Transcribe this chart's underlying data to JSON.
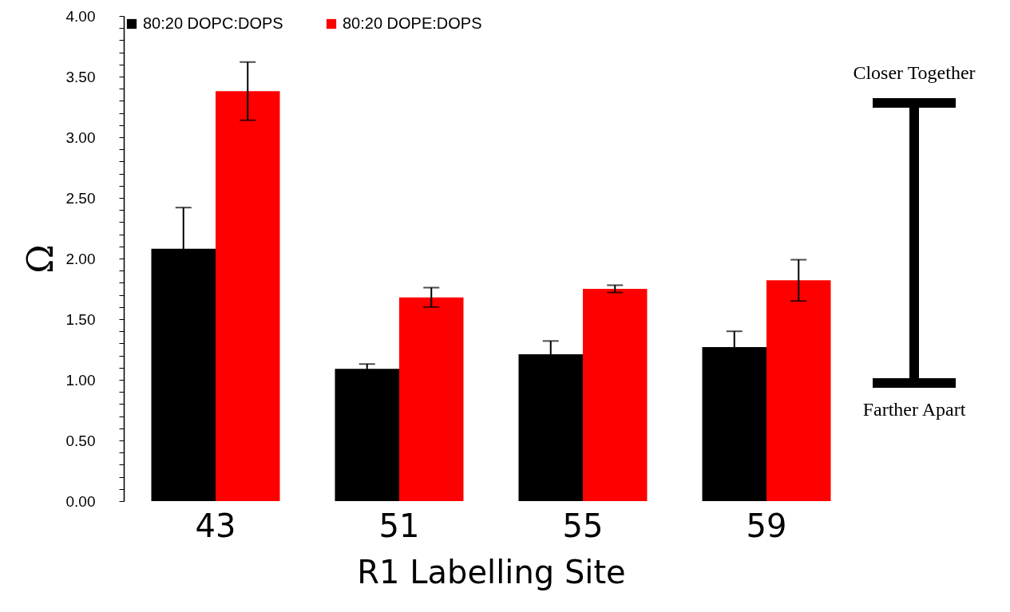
{
  "chart_data": {
    "type": "bar",
    "xlabel": "R1 Labelling Site",
    "ylabel": "Ω",
    "categories": [
      "43",
      "51",
      "55",
      "59"
    ],
    "series": [
      {
        "name": "80:20 DOPC:DOPS",
        "color": "#000000",
        "values": [
          2.08,
          1.09,
          1.21,
          1.27
        ],
        "errors": [
          0.34,
          0.04,
          0.11,
          0.13
        ]
      },
      {
        "name": "80:20 DOPE:DOPS",
        "color": "#ff0000",
        "values": [
          3.38,
          1.68,
          1.75,
          1.82
        ],
        "errors": [
          0.24,
          0.08,
          0.03,
          0.17
        ]
      }
    ],
    "ylim": [
      0,
      4
    ],
    "yticks": [
      {
        "value": 0,
        "label": "0.00"
      },
      {
        "value": 0.1,
        "label": null
      },
      {
        "value": 0.2,
        "label": null
      },
      {
        "value": 0.3,
        "label": null
      },
      {
        "value": 0.4,
        "label": null
      },
      {
        "value": 0.5,
        "label": "0.50"
      },
      {
        "value": 0.6,
        "label": null
      },
      {
        "value": 0.7,
        "label": null
      },
      {
        "value": 0.8,
        "label": null
      },
      {
        "value": 0.9,
        "label": null
      },
      {
        "value": 1,
        "label": "1.00"
      },
      {
        "value": 1.1,
        "label": null
      },
      {
        "value": 1.2,
        "label": null
      },
      {
        "value": 1.3,
        "label": null
      },
      {
        "value": 1.4,
        "label": null
      },
      {
        "value": 1.5,
        "label": "1.50"
      },
      {
        "value": 1.6,
        "label": null
      },
      {
        "value": 1.7,
        "label": null
      },
      {
        "value": 1.8,
        "label": null
      },
      {
        "value": 1.9,
        "label": null
      },
      {
        "value": 2,
        "label": "2.00"
      },
      {
        "value": 2.1,
        "label": null
      },
      {
        "value": 2.2,
        "label": null
      },
      {
        "value": 2.3,
        "label": null
      },
      {
        "value": 2.4,
        "label": null
      },
      {
        "value": 2.5,
        "label": "2.50"
      },
      {
        "value": 2.6,
        "label": null
      },
      {
        "value": 2.7,
        "label": null
      },
      {
        "value": 2.8,
        "label": null
      },
      {
        "value": 2.9,
        "label": null
      },
      {
        "value": 3,
        "label": "3.00"
      },
      {
        "value": 3.1,
        "label": null
      },
      {
        "value": 3.2,
        "label": null
      },
      {
        "value": 3.3,
        "label": null
      },
      {
        "value": 3.4,
        "label": null
      },
      {
        "value": 3.5,
        "label": "3.50"
      },
      {
        "value": 3.6,
        "label": null
      },
      {
        "value": 3.7,
        "label": null
      },
      {
        "value": 3.8,
        "label": null
      },
      {
        "value": 3.9,
        "label": null
      },
      {
        "value": 4,
        "label": "4.00"
      }
    ],
    "grid": false,
    "legend": "top",
    "annotations": [
      "Closer Together",
      "Farther Apart"
    ]
  }
}
